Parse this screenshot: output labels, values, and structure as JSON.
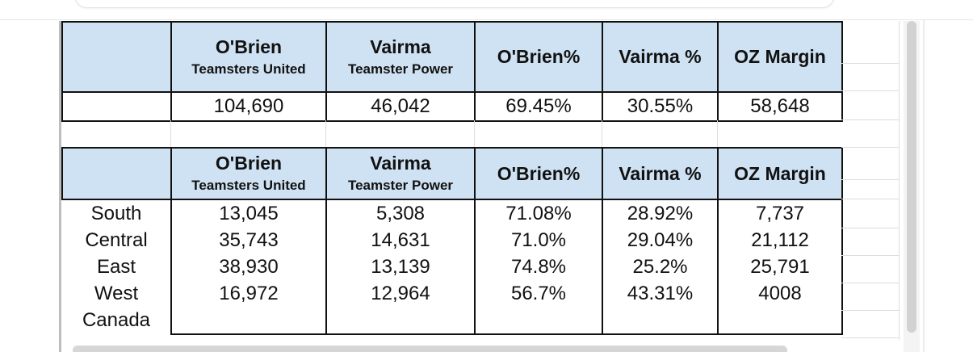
{
  "headers": [
    {
      "name": "",
      "sub": ""
    },
    {
      "name": "O'Brien",
      "sub": "Teamsters United"
    },
    {
      "name": "Vairma",
      "sub": "Teamster Power"
    },
    {
      "name": "O'Brien%",
      "sub": ""
    },
    {
      "name": "Vairma %",
      "sub": ""
    },
    {
      "name": "OZ Margin",
      "sub": ""
    }
  ],
  "summary": {
    "totals": [
      "",
      "104,690",
      "46,042",
      "69.45%",
      "30.55%",
      "58,648"
    ]
  },
  "regions": [
    {
      "label": "South",
      "values": [
        "13,045",
        "5,308",
        "71.08%",
        "28.92%",
        "7,737"
      ]
    },
    {
      "label": "Central",
      "values": [
        "35,743",
        "14,631",
        "71.0%",
        "29.04%",
        "21,112"
      ]
    },
    {
      "label": "East",
      "values": [
        "38,930",
        "13,139",
        "74.8%",
        "25.2%",
        "25,791"
      ]
    },
    {
      "label": "West",
      "values": [
        "16,972",
        "12,964",
        "56.7%",
        "43.31%",
        "4008"
      ]
    },
    {
      "label": "Canada",
      "values": [
        "",
        "",
        "",
        "",
        ""
      ]
    }
  ],
  "colors": {
    "header_fill": "#cfe2f3",
    "border": "#111111"
  }
}
